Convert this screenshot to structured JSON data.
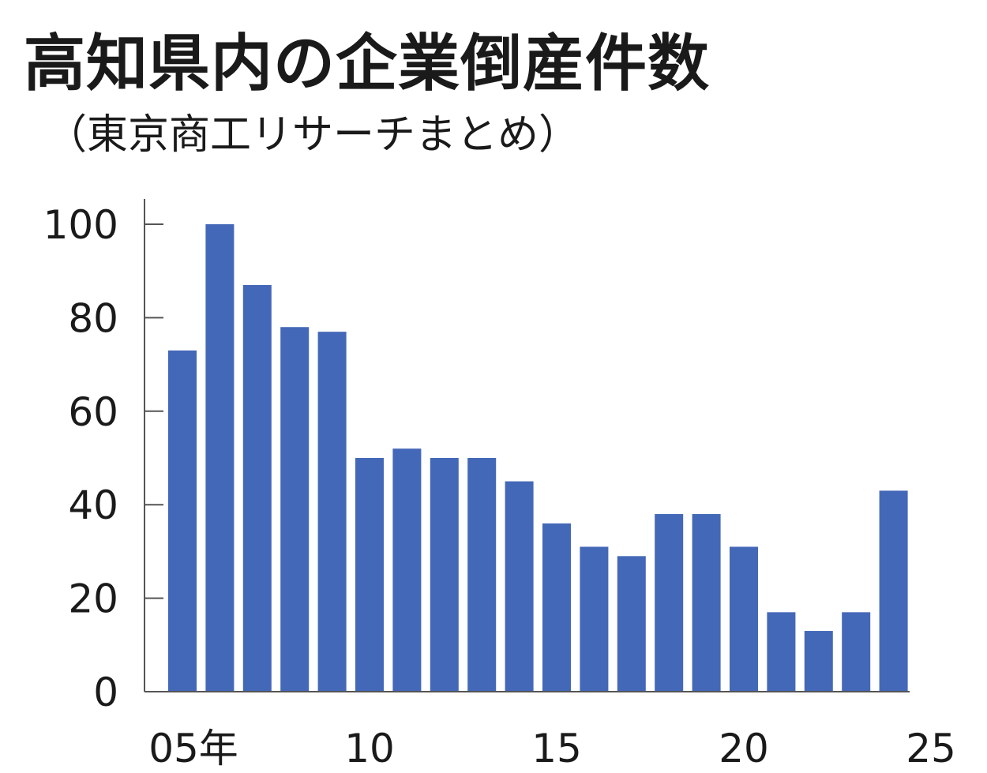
{
  "title": "高知県内の企業倒産件数",
  "subtitle": "（東京商工リサーチまとめ）",
  "chart_data": {
    "type": "bar",
    "years": [
      2005,
      2006,
      2007,
      2008,
      2009,
      2010,
      2011,
      2012,
      2013,
      2014,
      2015,
      2016,
      2017,
      2018,
      2019,
      2020,
      2021,
      2022,
      2023,
      2024
    ],
    "values": [
      73,
      100,
      87,
      78,
      77,
      50,
      52,
      50,
      50,
      45,
      36,
      31,
      29,
      38,
      38,
      31,
      17,
      13,
      17,
      43
    ],
    "y_ticks": [
      "0",
      "20",
      "40",
      "60",
      "80",
      "100"
    ],
    "y_tick_values": [
      0,
      20,
      40,
      60,
      80,
      100
    ],
    "x_ticks": [
      "05年",
      "10",
      "15",
      "20",
      "25"
    ],
    "x_tick_years": [
      2005,
      2010,
      2015,
      2020,
      2025
    ],
    "ylim": [
      0,
      100
    ],
    "bar_color": "#4468b8",
    "grid": false
  }
}
